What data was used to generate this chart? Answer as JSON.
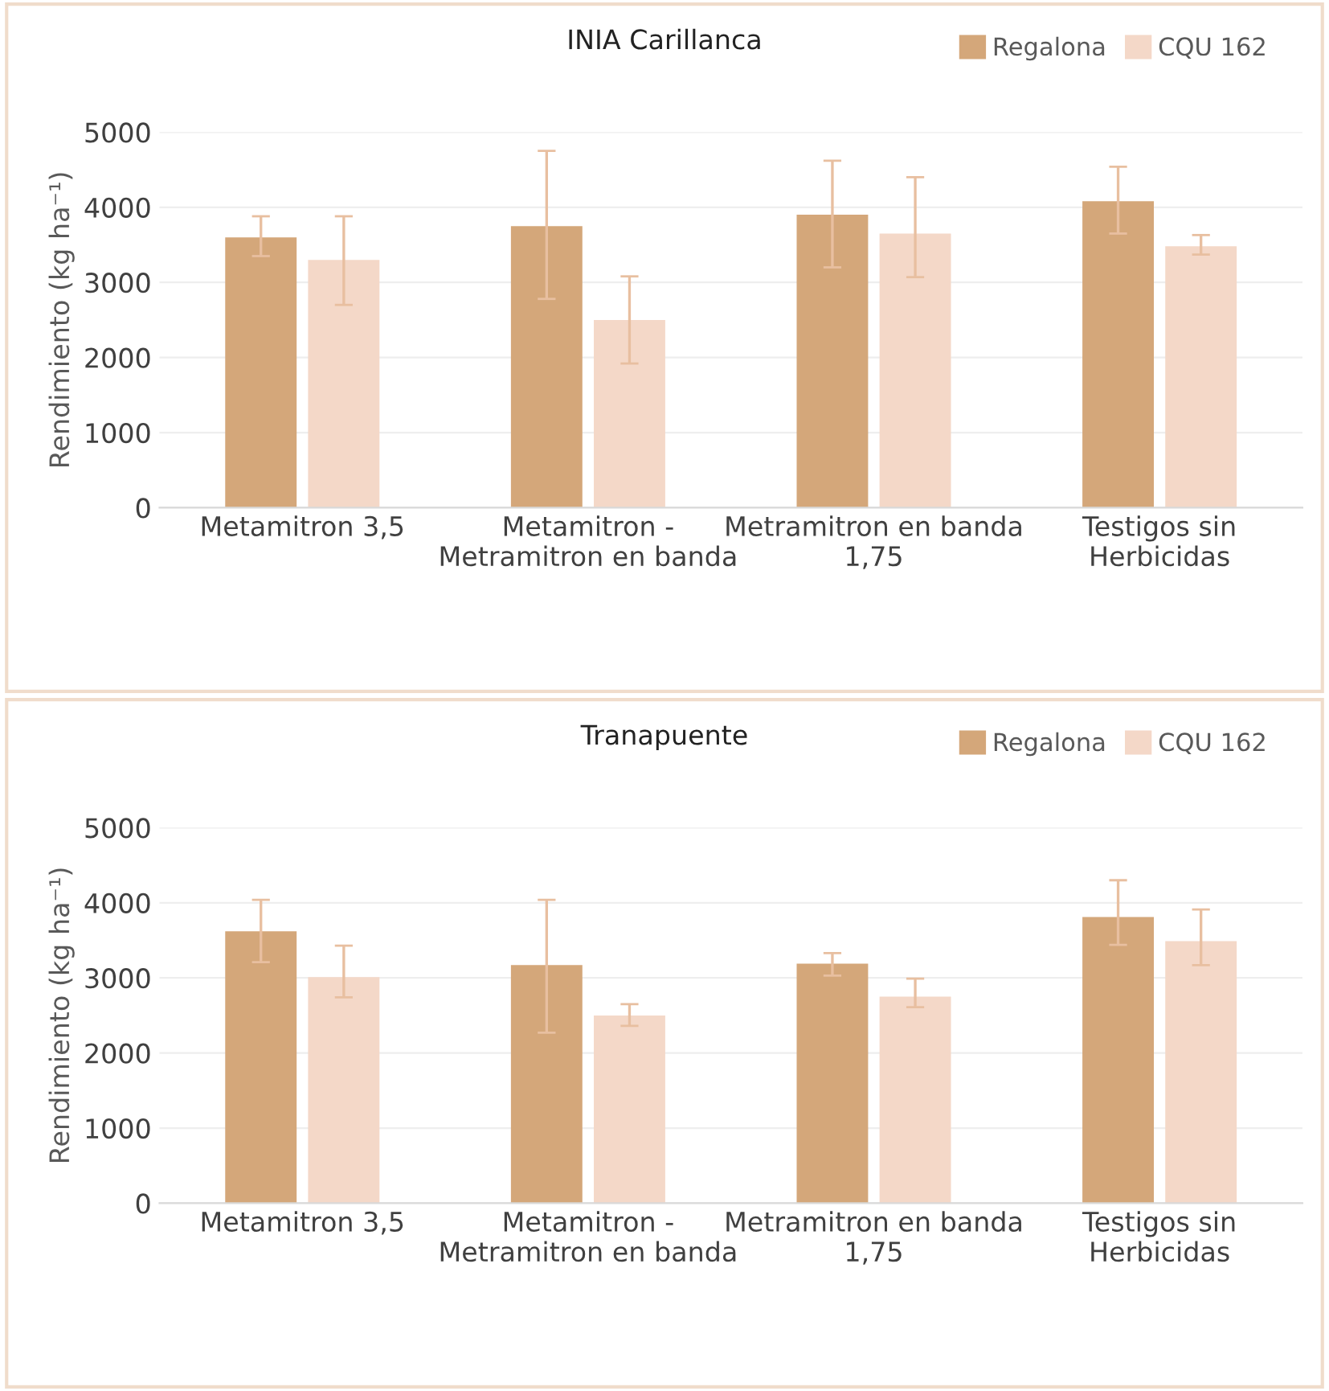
{
  "chart_data": [
    {
      "type": "bar",
      "title": "INIA Carillanca",
      "ylabel": "Rendimiento (kg ha⁻¹)",
      "categories": [
        "Metamitron 3,5",
        "Metamitron - Metramitron en banda",
        "Metramitron en banda 1,75",
        "Testigos sin Herbicidas"
      ],
      "ylim": [
        0,
        5000
      ],
      "yticks": [
        0,
        1000,
        2000,
        3000,
        4000,
        5000
      ],
      "grid": "y",
      "legend": "top right",
      "series": [
        {
          "name": "Regalona",
          "color": "#d4a77a",
          "values": [
            3600,
            3750,
            3900,
            4080
          ],
          "errors": [
            [
              3350,
              3880
            ],
            [
              2780,
              4750
            ],
            [
              3200,
              4620
            ],
            [
              3650,
              4540
            ]
          ]
        },
        {
          "name": "CQU 162",
          "color": "#f4d8c8",
          "values": [
            3300,
            2500,
            3650,
            3480
          ],
          "errors": [
            [
              2700,
              3880
            ],
            [
              1920,
              3080
            ],
            [
              3070,
              4400
            ],
            [
              3370,
              3630
            ]
          ]
        }
      ]
    },
    {
      "type": "bar",
      "title": "Tranapuente",
      "ylabel": "Rendimiento (kg ha⁻¹)",
      "categories": [
        "Metamitron 3,5",
        "Metamitron - Metramitron en banda",
        "Metramitron en banda 1,75",
        "Testigos sin Herbicidas"
      ],
      "ylim": [
        0,
        5000
      ],
      "yticks": [
        0,
        1000,
        2000,
        3000,
        4000,
        5000
      ],
      "grid": "y",
      "legend": "top right",
      "series": [
        {
          "name": "Regalona",
          "color": "#d4a77a",
          "values": [
            3620,
            3170,
            3190,
            3810
          ],
          "errors": [
            [
              3210,
              4040
            ],
            [
              2270,
              4040
            ],
            [
              3030,
              3330
            ],
            [
              3440,
              4300
            ]
          ]
        },
        {
          "name": "CQU 162",
          "color": "#f4d8c8",
          "values": [
            3010,
            2500,
            2750,
            3490
          ],
          "errors": [
            [
              2740,
              3430
            ],
            [
              2360,
              2650
            ],
            [
              2610,
              2990
            ],
            [
              3170,
              3910
            ]
          ]
        }
      ]
    }
  ]
}
